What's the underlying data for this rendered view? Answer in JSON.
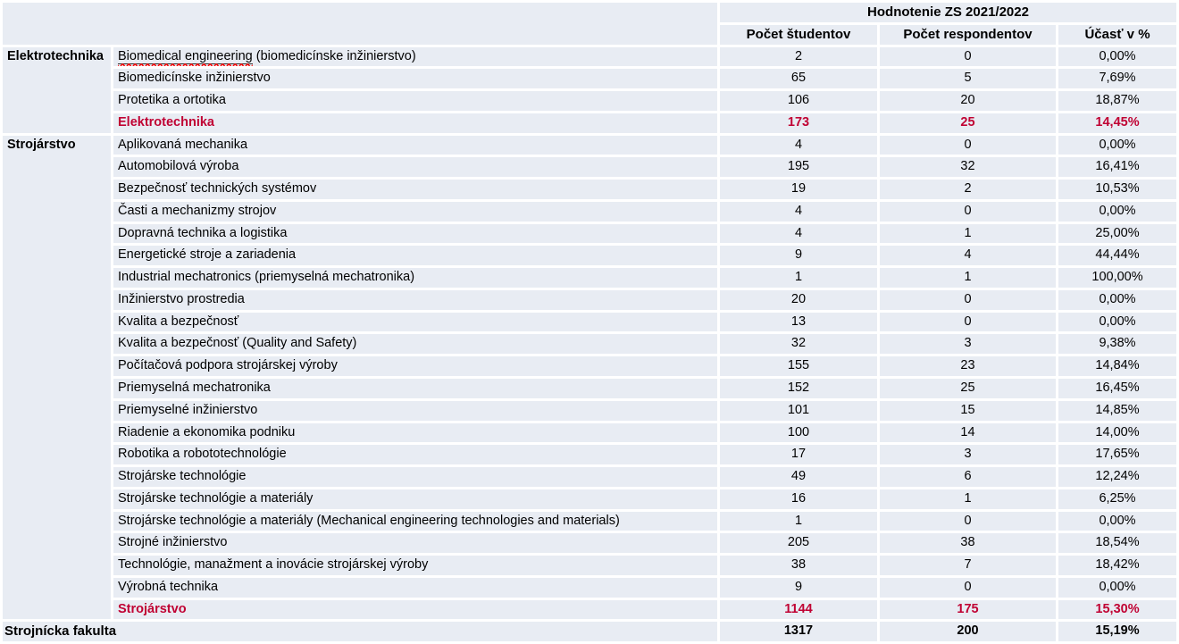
{
  "colors": {
    "cell_bg": "#e8ecf3",
    "accent_red": "#c00233",
    "spellcheck_red": "#ff0000",
    "underline_dark": "#333333"
  },
  "header": {
    "title": "Hodnotenie ZS 2021/2022",
    "columns": [
      "Počet študentov",
      "Počet respondentov",
      "Účasť v %"
    ]
  },
  "groups": [
    {
      "name": "Elektrotechnika",
      "programs": [
        {
          "label_underlined": "Biomedical engineering",
          "label_rest": " (biomedicínske inžinierstvo)",
          "students": "2",
          "respondents": "0",
          "participation": "0,00%"
        },
        {
          "label": "Biomedicínske inžinierstvo",
          "students": "65",
          "respondents": "5",
          "participation": "7,69%"
        },
        {
          "label": "Protetika a ortotika",
          "students": "106",
          "respondents": "20",
          "participation": "18,87%"
        }
      ],
      "total": {
        "label": "Elektrotechnika",
        "students": "173",
        "respondents": "25",
        "participation": "14,45%"
      }
    },
    {
      "name": "Strojárstvo",
      "programs": [
        {
          "label": "Aplikovaná mechanika",
          "students": "4",
          "respondents": "0",
          "participation": "0,00%"
        },
        {
          "label": "Automobilová výroba",
          "students": "195",
          "respondents": "32",
          "participation": "16,41%"
        },
        {
          "label": "Bezpečnosť technických systémov",
          "students": "19",
          "respondents": "2",
          "participation": "10,53%"
        },
        {
          "label": "Časti a mechanizmy strojov",
          "students": "4",
          "respondents": "0",
          "participation": "0,00%"
        },
        {
          "label": "Dopravná technika a logistika",
          "students": "4",
          "respondents": "1",
          "participation": "25,00%"
        },
        {
          "label": "Energetické stroje a zariadenia",
          "students": "9",
          "respondents": "4",
          "participation": "44,44%"
        },
        {
          "label": "Industrial mechatronics (priemyselná mechatronika)",
          "students": "1",
          "respondents": "1",
          "participation": "100,00%"
        },
        {
          "label": "Inžinierstvo prostredia",
          "students": "20",
          "respondents": "0",
          "participation": "0,00%"
        },
        {
          "label": "Kvalita a bezpečnosť",
          "students": "13",
          "respondents": "0",
          "participation": "0,00%"
        },
        {
          "label": "Kvalita a bezpečnosť (Quality and Safety)",
          "students": "32",
          "respondents": "3",
          "participation": "9,38%"
        },
        {
          "label": "Počítačová podpora strojárskej výroby",
          "students": "155",
          "respondents": "23",
          "participation": "14,84%"
        },
        {
          "label": "Priemyselná mechatronika",
          "students": "152",
          "respondents": "25",
          "participation": "16,45%"
        },
        {
          "label": "Priemyselné inžinierstvo",
          "students": "101",
          "respondents": "15",
          "participation": "14,85%"
        },
        {
          "label": "Riadenie a ekonomika podniku",
          "students": "100",
          "respondents": "14",
          "participation": "14,00%"
        },
        {
          "label": "Robotika a robototechnológie",
          "students": "17",
          "respondents": "3",
          "participation": "17,65%"
        },
        {
          "label": "Strojárske technológie",
          "students": "49",
          "respondents": "6",
          "participation": "12,24%"
        },
        {
          "label": "Strojárske technológie a materiály",
          "students": "16",
          "respondents": "1",
          "participation": "6,25%"
        },
        {
          "label": "Strojárske technológie a materiály (Mechanical engineering technologies and materials)",
          "students": "1",
          "respondents": "0",
          "participation": "0,00%"
        },
        {
          "label": "Strojné inžinierstvo",
          "students": "205",
          "respondents": "38",
          "participation": "18,54%"
        },
        {
          "label": "Technológie, manažment a inovácie strojárskej výroby",
          "students": "38",
          "respondents": "7",
          "participation": "18,42%"
        },
        {
          "label": "Výrobná technika",
          "students": "9",
          "respondents": "0",
          "participation": "0,00%"
        }
      ],
      "total": {
        "label": "Strojárstvo",
        "students": "1144",
        "respondents": "175",
        "participation": "15,30%"
      }
    }
  ],
  "footer": {
    "label": "Strojnícka fakulta",
    "students": "1317",
    "respondents": "200",
    "participation": "15,19%"
  }
}
